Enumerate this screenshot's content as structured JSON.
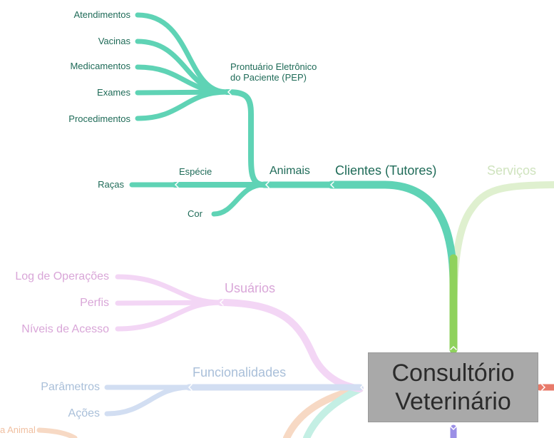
{
  "root": {
    "line1": "Consultório",
    "line2": "Veterinário"
  },
  "branches": {
    "clientes": {
      "label": "Clientes (Tutores)",
      "animais": {
        "label": "Animais",
        "pep": {
          "line1": "Prontuário Eletrônico",
          "line2": "do Paciente (PEP)",
          "items": [
            "Atendimentos",
            "Vacinas",
            "Medicamentos",
            "Exames",
            "Procedimentos"
          ]
        },
        "especie": "Espécie",
        "racas": "Raças",
        "cor": "Cor"
      }
    },
    "servicos": {
      "label": "Serviços"
    },
    "usuarios": {
      "label": "Usuários",
      "items": [
        "Log de Operações",
        "Perfis",
        "Níveis de Acesso"
      ]
    },
    "funcionalidades": {
      "label": "Funcionalidades",
      "items": [
        "Parâmetros",
        "Ações"
      ]
    },
    "partial": {
      "label": "a Animal"
    }
  },
  "colors": {
    "teal": "#5fd3b5",
    "green": "#8fd25c",
    "light_green": "#dff0cf",
    "pink": "#f3d6f5",
    "blue": "#d2def2",
    "orange": "#f7d9c4",
    "mint": "#c4efe4",
    "purple": "#9b8fe6",
    "red": "#e87a6a",
    "root_box": "#a9a9a9"
  }
}
